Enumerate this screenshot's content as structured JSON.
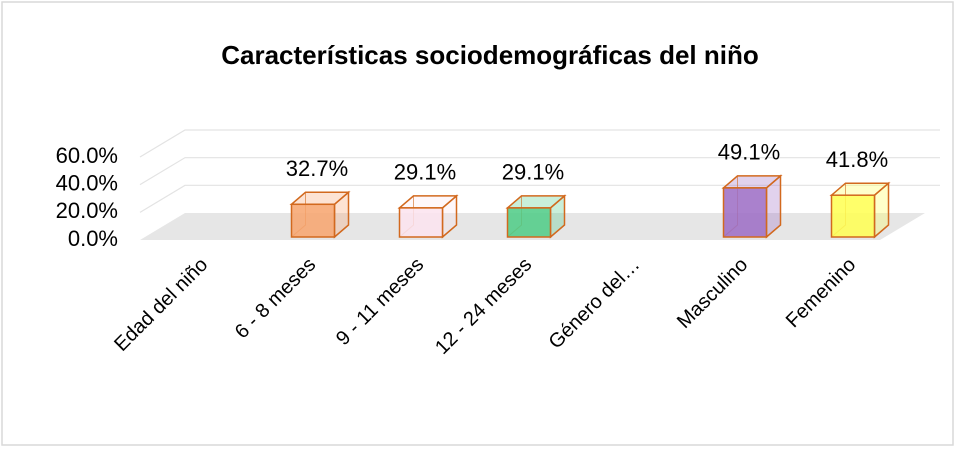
{
  "chart_data": {
    "type": "bar3d",
    "title": "Características sociodemográficas del niño",
    "categories": [
      "Edad del niño",
      "6 - 8 meses",
      "9 - 11 meses",
      "12 - 24 meses",
      "Género del…",
      "Masculino",
      "Femenino"
    ],
    "values": [
      null,
      32.7,
      29.1,
      29.1,
      null,
      49.1,
      41.8
    ],
    "value_labels": [
      null,
      "32.7%",
      "29.1%",
      "29.1%",
      null,
      "49.1%",
      "41.8%"
    ],
    "colors": [
      null,
      "#f7a36c",
      "#fbe3ef",
      "#4ccb85",
      "#9b6bc4",
      "#9b6bc4",
      "#ffff50"
    ],
    "edge_color": "#d2691e",
    "ylim": [
      0,
      60
    ],
    "yticks": [
      {
        "value": 0,
        "label": "0.0%"
      },
      {
        "value": 20,
        "label": "20.0%"
      },
      {
        "value": 40,
        "label": "40.0%"
      },
      {
        "value": 60,
        "label": "60.0%"
      }
    ],
    "grid": true
  }
}
